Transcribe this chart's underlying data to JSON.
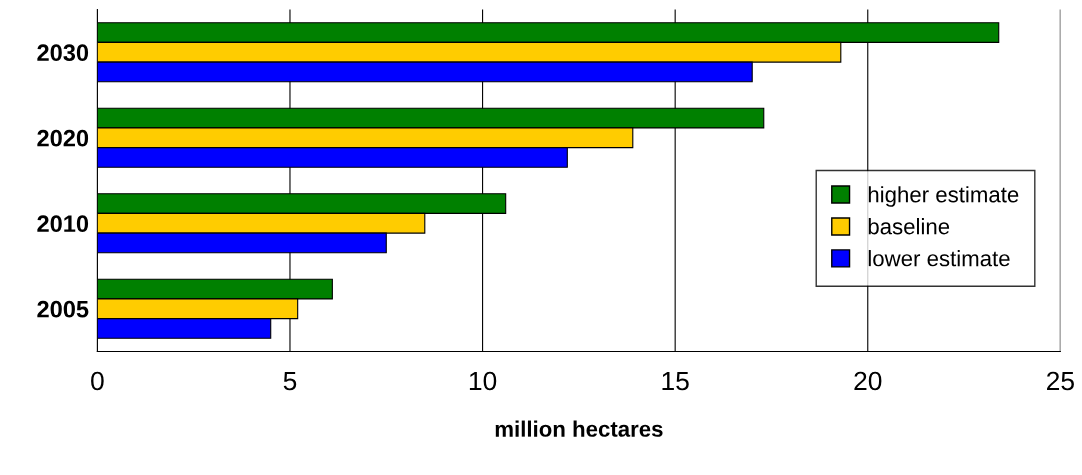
{
  "chart_data": {
    "type": "bar",
    "orientation": "horizontal",
    "xlabel": "million hectares",
    "categories": [
      "2030",
      "2020",
      "2010",
      "2005"
    ],
    "series": [
      {
        "name": "higher estimate",
        "color": "#008000",
        "values": [
          23.4,
          17.3,
          10.6,
          6.1
        ]
      },
      {
        "name": "baseline",
        "color": "#ffcc00",
        "values": [
          19.3,
          13.9,
          8.5,
          5.2
        ]
      },
      {
        "name": "lower estimate",
        "color": "#0000ff",
        "values": [
          17.0,
          12.2,
          7.5,
          4.5
        ]
      }
    ],
    "xlim": [
      0,
      25
    ],
    "xticks": [
      0,
      5,
      10,
      15,
      20,
      25
    ],
    "grid": "x",
    "legend": "right"
  }
}
